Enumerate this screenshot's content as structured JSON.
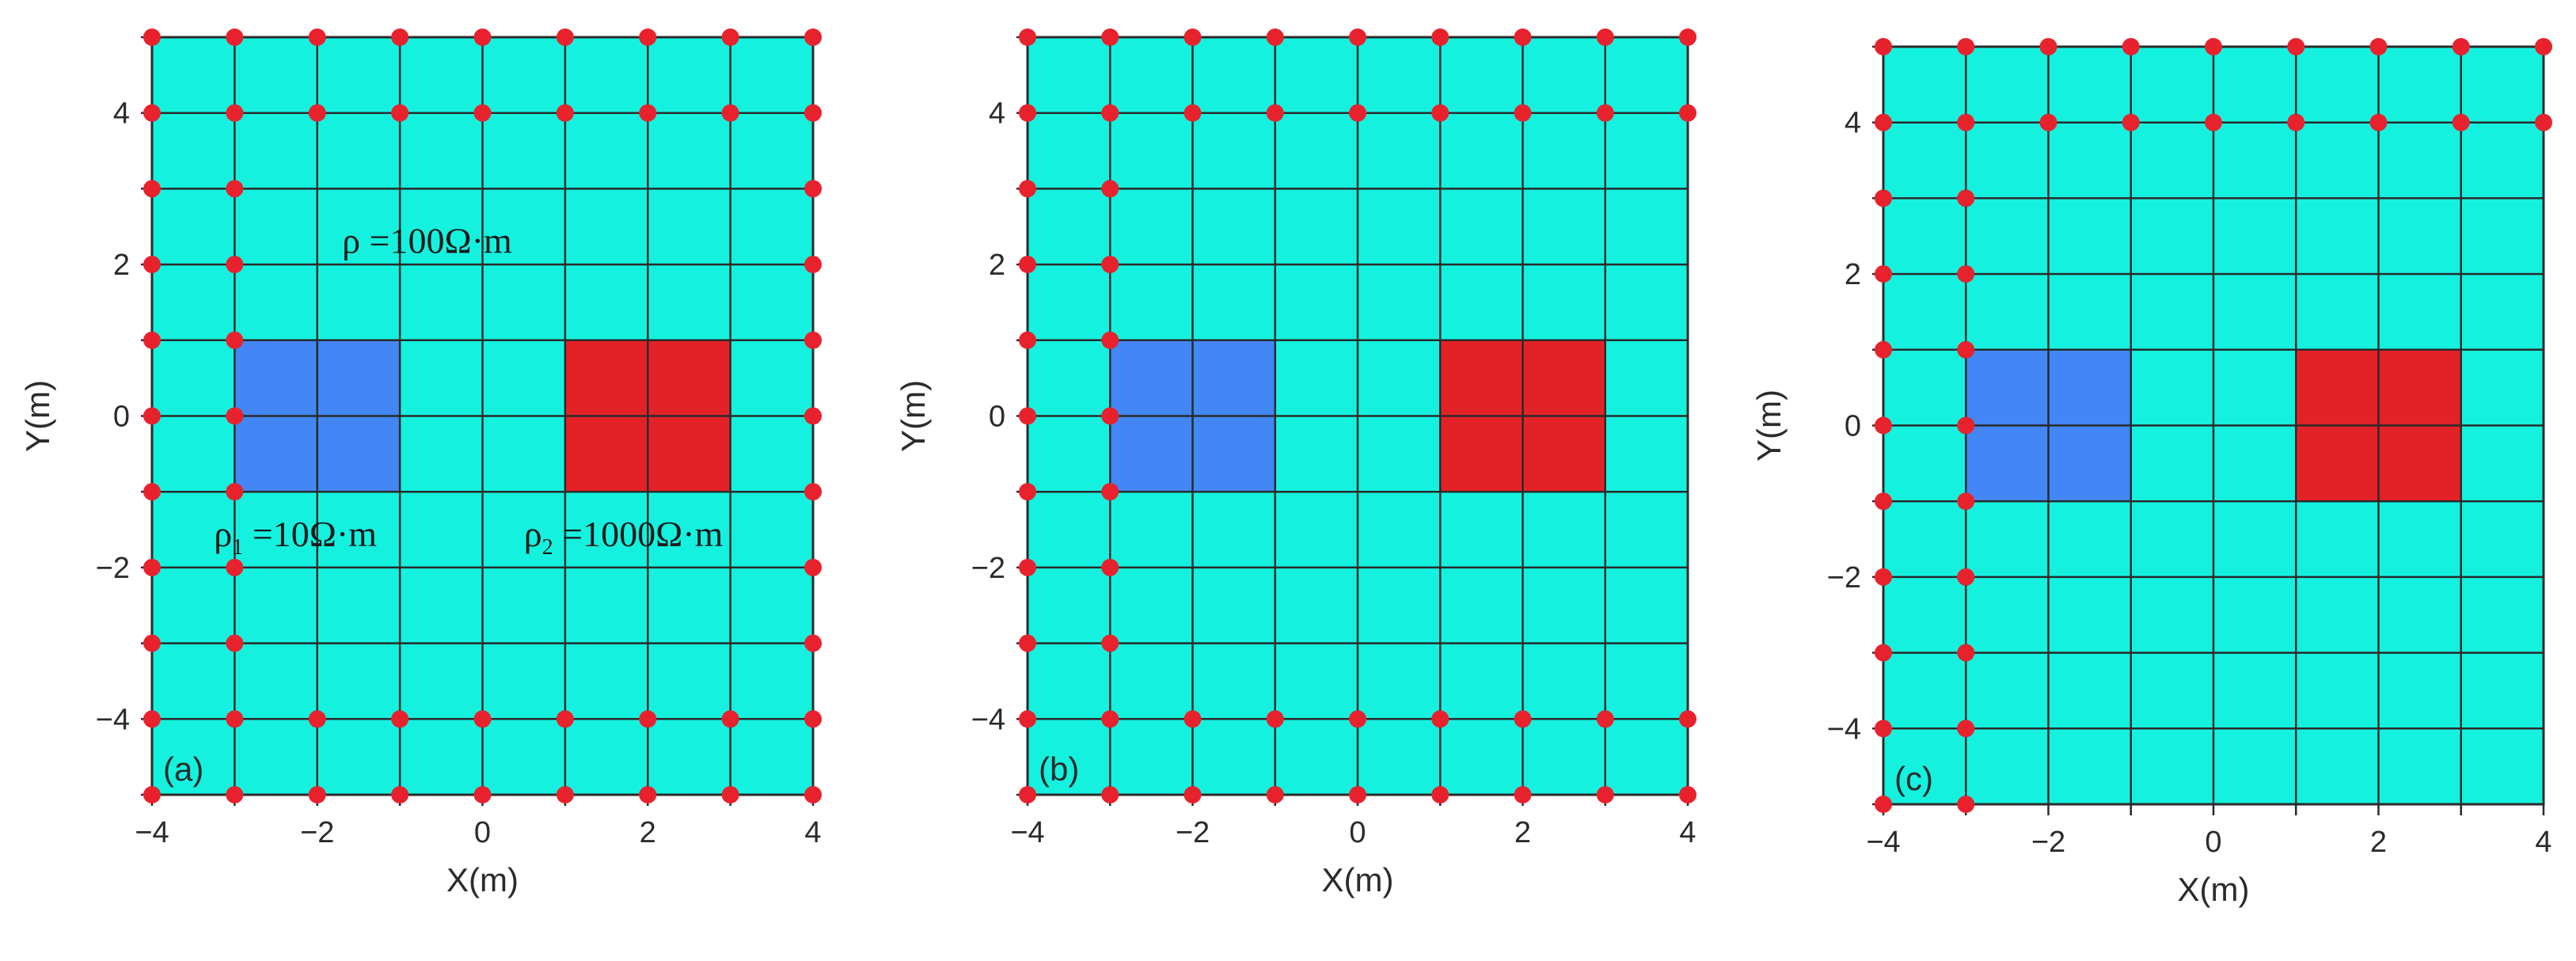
{
  "figure": {
    "colors": {
      "background": "#14F2DF",
      "block_low": "#4287F5",
      "block_high": "#E32228",
      "grid": "#2a2a2a",
      "node": "#E8222D"
    },
    "x_ticks": [
      "−4",
      "−2",
      "0",
      "2",
      "4"
    ],
    "y_ticks": [
      "−4",
      "−2",
      "0",
      "2",
      "4"
    ],
    "xlabel": "X(m)",
    "ylabel": "Y(m)",
    "annotations": {
      "rho_background": "ρ =100Ω·m",
      "rho1_symbol": "ρ",
      "rho1_sub": "1",
      "rho1_rest": "=10Ω·m",
      "rho2_symbol": "ρ",
      "rho2_sub": "2",
      "rho2_rest": "=1000Ω·m"
    },
    "panels": [
      {
        "tag": "(a)",
        "node_pattern": "a"
      },
      {
        "tag": "(b)",
        "node_pattern": "b"
      },
      {
        "tag": "(c)",
        "node_pattern": "c"
      }
    ]
  },
  "chart_data": [
    {
      "type": "diagram",
      "title": "",
      "xlabel": "X(m)",
      "ylabel": "Y(m)",
      "xlim": [
        -4,
        4
      ],
      "ylim": [
        -5,
        5
      ],
      "grid_x": [
        -4,
        -3,
        -2,
        -1,
        0,
        1,
        2,
        3,
        4
      ],
      "grid_y": [
        -5,
        -4,
        -3,
        -2,
        -1,
        0,
        1,
        2,
        3,
        4,
        5
      ],
      "blocks": [
        {
          "x": [
            -3,
            -1
          ],
          "y": [
            -1,
            1
          ],
          "resistivity": "10Ω·m",
          "color": "#4287F5"
        },
        {
          "x": [
            1,
            3
          ],
          "y": [
            -1,
            1
          ],
          "resistivity": "1000Ω·m",
          "color": "#E32228"
        }
      ],
      "background_resistivity": "100Ω·m",
      "nodes": "rows y=-5,-4,4,5 all x; columns x=-4,-3,4 all y"
    },
    {
      "type": "diagram",
      "title": "",
      "xlabel": "X(m)",
      "ylabel": "Y(m)",
      "xlim": [
        -4,
        4
      ],
      "ylim": [
        -5,
        5
      ],
      "blocks": [
        {
          "x": [
            -3,
            -1
          ],
          "y": [
            -1,
            1
          ],
          "color": "#4287F5"
        },
        {
          "x": [
            1,
            3
          ],
          "y": [
            -1,
            1
          ],
          "color": "#E32228"
        }
      ],
      "nodes": "rows y=-5,-4,4,5 all x; columns x=-4,-3 all y"
    },
    {
      "type": "diagram",
      "title": "",
      "xlabel": "X(m)",
      "ylabel": "Y(m)",
      "xlim": [
        -4,
        4
      ],
      "ylim": [
        -5,
        5
      ],
      "blocks": [
        {
          "x": [
            -3,
            -1
          ],
          "y": [
            -1,
            1
          ],
          "color": "#4287F5"
        },
        {
          "x": [
            1,
            3
          ],
          "y": [
            -1,
            1
          ],
          "color": "#E32228"
        }
      ],
      "nodes": "rows y=4,5 all x; columns x=-4,-3 all y"
    }
  ]
}
